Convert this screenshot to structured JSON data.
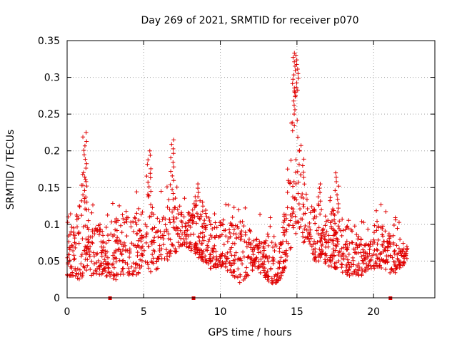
{
  "chart_data": {
    "type": "scatter",
    "title": "Day 269 of 2021, SRMTID for receiver p070",
    "xlabel": "GPS time / hours",
    "ylabel": "SRMTID / TECUs",
    "xlim": [
      0,
      24
    ],
    "ylim": [
      0,
      0.35
    ],
    "x_ticks": [
      0,
      5,
      10,
      15,
      20
    ],
    "x_tick_labels": [
      "0",
      "5",
      "10",
      "15",
      "20"
    ],
    "y_ticks": [
      0,
      0.05,
      0.1,
      0.15,
      0.2,
      0.25,
      0.3,
      0.35
    ],
    "y_tick_labels": [
      "0",
      "0.05",
      "0.1",
      "0.15",
      "0.2",
      "0.25",
      "0.3",
      "0.35"
    ],
    "grid": true,
    "marker": "+",
    "series_color": "#e00000",
    "gap_markers_x": [
      2.8,
      8.25,
      21.1
    ],
    "envelope": {
      "description": "approximate per-time-bin range of SRMTID values (hours, min TECU, typical max TECU)",
      "x": [
        0.0,
        0.5,
        1.0,
        1.3,
        1.6,
        2.0,
        2.5,
        3.0,
        3.5,
        4.0,
        4.5,
        5.0,
        5.3,
        5.6,
        6.0,
        6.5,
        6.9,
        7.3,
        7.8,
        8.3,
        8.8,
        9.3,
        9.8,
        10.3,
        10.8,
        11.3,
        11.8,
        12.3,
        12.8,
        13.3,
        13.8,
        14.2,
        14.5,
        14.8,
        15.0,
        15.3,
        15.7,
        16.2,
        16.7,
        17.2,
        17.7,
        18.2,
        18.7,
        19.2,
        19.7,
        20.2,
        20.7,
        21.2,
        21.7,
        22.2
      ],
      "ymin": [
        0.03,
        0.03,
        0.02,
        0.04,
        0.03,
        0.03,
        0.03,
        0.02,
        0.03,
        0.03,
        0.03,
        0.04,
        0.04,
        0.03,
        0.04,
        0.05,
        0.06,
        0.06,
        0.07,
        0.06,
        0.05,
        0.04,
        0.04,
        0.04,
        0.03,
        0.02,
        0.03,
        0.04,
        0.03,
        0.02,
        0.02,
        0.04,
        0.06,
        0.08,
        0.09,
        0.08,
        0.06,
        0.05,
        0.05,
        0.04,
        0.04,
        0.03,
        0.03,
        0.03,
        0.04,
        0.04,
        0.04,
        0.03,
        0.04,
        0.05
      ],
      "ymax": [
        0.08,
        0.11,
        0.14,
        0.14,
        0.12,
        0.11,
        0.1,
        0.1,
        0.12,
        0.12,
        0.12,
        0.13,
        0.15,
        0.12,
        0.11,
        0.13,
        0.15,
        0.12,
        0.11,
        0.13,
        0.12,
        0.11,
        0.1,
        0.11,
        0.1,
        0.11,
        0.1,
        0.09,
        0.08,
        0.08,
        0.08,
        0.12,
        0.18,
        0.25,
        0.28,
        0.2,
        0.13,
        0.12,
        0.11,
        0.13,
        0.12,
        0.1,
        0.09,
        0.08,
        0.08,
        0.1,
        0.1,
        0.08,
        0.08,
        0.07
      ]
    },
    "peaks": [
      {
        "x": 1.15,
        "y": 0.225
      },
      {
        "x": 5.35,
        "y": 0.2
      },
      {
        "x": 6.85,
        "y": 0.215
      },
      {
        "x": 8.5,
        "y": 0.155
      },
      {
        "x": 14.8,
        "y": 0.333
      },
      {
        "x": 15.0,
        "y": 0.33
      },
      {
        "x": 17.6,
        "y": 0.17
      },
      {
        "x": 16.5,
        "y": 0.155
      }
    ],
    "approx_point_count": 1500
  }
}
